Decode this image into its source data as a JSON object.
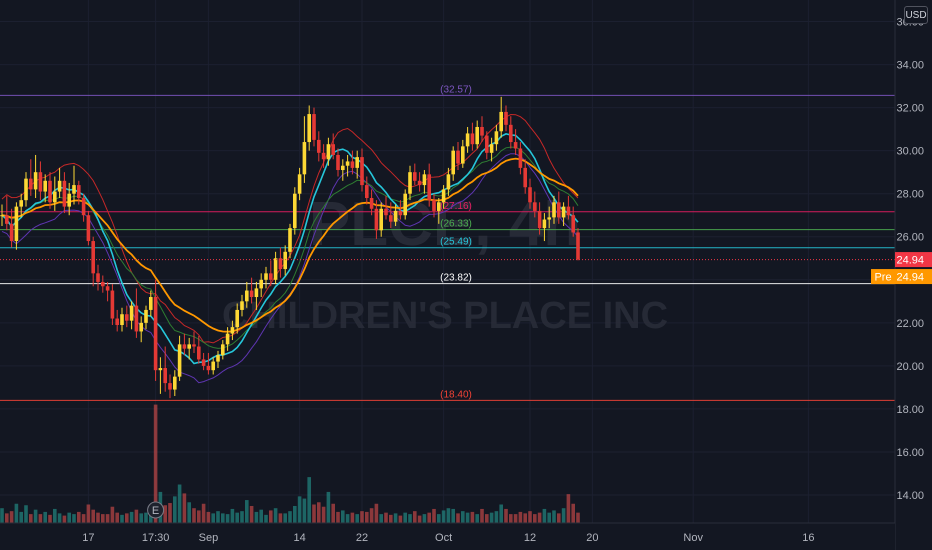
{
  "currency": "USD",
  "watermark": {
    "symbol": "PLCE, 4h",
    "company": "CHILDREN'S PLACE INC"
  },
  "y_axis": {
    "ticks": [
      {
        "v": 14,
        "label": "14.00"
      },
      {
        "v": 16,
        "label": "16.00"
      },
      {
        "v": 18,
        "label": "18.00"
      },
      {
        "v": 20,
        "label": "20.00"
      },
      {
        "v": 22,
        "label": "22.00"
      },
      {
        "v": 24,
        "label": "24.00"
      },
      {
        "v": 26,
        "label": "26.00"
      },
      {
        "v": 28,
        "label": "28.00"
      },
      {
        "v": 30,
        "label": "30.00"
      },
      {
        "v": 32,
        "label": "32.00"
      },
      {
        "v": 34,
        "label": "34.00"
      },
      {
        "v": 36,
        "label": "36.00"
      }
    ]
  },
  "x_axis": {
    "ticks": [
      {
        "i": 18,
        "label": "17"
      },
      {
        "i": 32,
        "label": "17:30"
      },
      {
        "i": 43,
        "label": "Sep"
      },
      {
        "i": 62,
        "label": "14"
      },
      {
        "i": 75,
        "label": "22"
      },
      {
        "i": 92,
        "label": "Oct"
      },
      {
        "i": 110,
        "label": "12"
      },
      {
        "i": 123,
        "label": "20"
      },
      {
        "i": 144,
        "label": "Nov"
      },
      {
        "i": 168,
        "label": "16"
      }
    ]
  },
  "last_price": {
    "value": 24.94,
    "label": "24.94",
    "color": "#f23645"
  },
  "premarket": {
    "tag": "Pre",
    "value": 24.94,
    "label": "24.94",
    "color": "#ff9800"
  },
  "earnings_marker": {
    "i": 32,
    "label": "E"
  },
  "chart_data": {
    "type": "candlestick",
    "interval": "4h",
    "y_range": [
      12.7,
      37.0
    ],
    "colors": {
      "up": "#fdd835",
      "down": "#e53935",
      "vol_up": "#26a69a",
      "vol_down": "#ef5350"
    },
    "levels": [
      {
        "value": 32.57,
        "label": "32.57",
        "color": "#7e57c2"
      },
      {
        "value": 27.16,
        "label": "27.16",
        "color": "#e91e63"
      },
      {
        "value": 26.33,
        "label": "26.33",
        "color": "#4caf50"
      },
      {
        "value": 25.49,
        "label": "25.49",
        "color": "#26c6da"
      },
      {
        "value": 23.82,
        "label": "23.82",
        "color": "#ffffff"
      },
      {
        "value": 18.4,
        "label": "18.40",
        "color": "#f44336"
      }
    ],
    "candles": [
      [
        27.0,
        27.5,
        26.5,
        27.0
      ],
      [
        27.0,
        27.9,
        26.3,
        26.6
      ],
      [
        26.6,
        27.3,
        25.5,
        25.8
      ],
      [
        25.8,
        27.6,
        25.4,
        27.4
      ],
      [
        27.4,
        28.0,
        26.9,
        27.7
      ],
      [
        27.7,
        29.0,
        27.4,
        28.7
      ],
      [
        28.7,
        29.6,
        27.9,
        28.2
      ],
      [
        28.2,
        29.8,
        27.8,
        29.0
      ],
      [
        29.0,
        29.5,
        27.7,
        28.1
      ],
      [
        28.1,
        28.9,
        27.6,
        28.6
      ],
      [
        28.6,
        29.0,
        27.3,
        27.6
      ],
      [
        27.6,
        28.8,
        27.2,
        28.1
      ],
      [
        28.1,
        29.2,
        27.8,
        28.6
      ],
      [
        28.6,
        29.0,
        27.1,
        27.4
      ],
      [
        27.4,
        28.5,
        27.0,
        28.0
      ],
      [
        28.0,
        29.3,
        27.5,
        28.4
      ],
      [
        28.4,
        28.6,
        27.5,
        27.8
      ],
      [
        27.8,
        28.0,
        26.7,
        27.0
      ],
      [
        27.0,
        27.2,
        25.6,
        25.8
      ],
      [
        25.8,
        26.0,
        23.7,
        24.3
      ],
      [
        24.3,
        24.7,
        23.5,
        23.9
      ],
      [
        23.9,
        24.2,
        23.4,
        23.7
      ],
      [
        23.7,
        23.9,
        23.0,
        23.5
      ],
      [
        23.5,
        23.8,
        21.9,
        22.2
      ],
      [
        22.2,
        22.6,
        21.6,
        21.9
      ],
      [
        21.9,
        22.7,
        21.6,
        22.4
      ],
      [
        22.4,
        22.8,
        21.8,
        22.1
      ],
      [
        22.1,
        23.0,
        21.7,
        22.8
      ],
      [
        22.8,
        23.6,
        21.3,
        21.6
      ],
      [
        21.6,
        22.3,
        21.1,
        22.0
      ],
      [
        22.0,
        22.8,
        21.7,
        22.6
      ],
      [
        22.6,
        23.5,
        22.3,
        23.2
      ],
      [
        23.2,
        24.0,
        19.3,
        19.8
      ],
      [
        19.8,
        20.4,
        18.7,
        19.9
      ],
      [
        19.9,
        20.9,
        18.8,
        19.2
      ],
      [
        19.2,
        19.6,
        18.5,
        18.9
      ],
      [
        18.9,
        19.8,
        18.6,
        19.5
      ],
      [
        19.5,
        21.4,
        19.3,
        21.0
      ],
      [
        21.0,
        21.5,
        20.5,
        20.8
      ],
      [
        20.8,
        21.3,
        20.3,
        21.0
      ],
      [
        21.0,
        21.6,
        20.6,
        20.9
      ],
      [
        20.9,
        21.4,
        20.1,
        20.3
      ],
      [
        20.3,
        20.6,
        19.8,
        20.0
      ],
      [
        20.0,
        20.6,
        19.6,
        19.8
      ],
      [
        19.8,
        20.4,
        19.6,
        20.2
      ],
      [
        20.2,
        20.7,
        19.9,
        20.5
      ],
      [
        20.5,
        21.2,
        20.3,
        21.0
      ],
      [
        21.0,
        21.8,
        20.7,
        21.5
      ],
      [
        21.5,
        22.1,
        21.2,
        21.8
      ],
      [
        21.8,
        22.9,
        21.5,
        22.6
      ],
      [
        22.6,
        23.3,
        22.3,
        23.0
      ],
      [
        23.0,
        23.9,
        22.7,
        23.5
      ],
      [
        23.5,
        24.1,
        22.9,
        23.2
      ],
      [
        23.2,
        23.9,
        22.6,
        23.6
      ],
      [
        23.6,
        24.3,
        23.2,
        24.0
      ],
      [
        24.0,
        24.6,
        23.6,
        24.3
      ],
      [
        24.3,
        24.9,
        23.7,
        24.0
      ],
      [
        24.0,
        25.3,
        23.8,
        25.0
      ],
      [
        25.0,
        25.5,
        24.1,
        24.5
      ],
      [
        24.5,
        25.6,
        24.2,
        25.3
      ],
      [
        25.3,
        26.6,
        25.0,
        26.4
      ],
      [
        26.4,
        28.3,
        26.1,
        28.0
      ],
      [
        28.0,
        29.2,
        27.7,
        28.9
      ],
      [
        28.9,
        31.6,
        28.5,
        30.4
      ],
      [
        30.4,
        32.1,
        30.0,
        31.7
      ],
      [
        31.7,
        32.0,
        30.2,
        30.5
      ],
      [
        30.5,
        30.9,
        29.5,
        29.9
      ],
      [
        29.9,
        30.3,
        29.2,
        29.6
      ],
      [
        29.6,
        30.6,
        29.3,
        30.3
      ],
      [
        30.3,
        30.8,
        29.6,
        29.8
      ],
      [
        29.8,
        30.1,
        28.8,
        29.1
      ],
      [
        29.1,
        29.6,
        28.6,
        29.3
      ],
      [
        29.3,
        29.8,
        28.8,
        29.5
      ],
      [
        29.5,
        30.0,
        28.9,
        29.2
      ],
      [
        29.2,
        30.0,
        28.7,
        29.7
      ],
      [
        29.7,
        30.1,
        28.1,
        28.4
      ],
      [
        28.4,
        28.8,
        27.5,
        27.8
      ],
      [
        27.8,
        28.2,
        27.0,
        27.3
      ],
      [
        27.3,
        27.7,
        25.9,
        26.3
      ],
      [
        26.3,
        27.6,
        26.0,
        27.3
      ],
      [
        27.3,
        27.9,
        26.8,
        27.0
      ],
      [
        27.0,
        27.6,
        26.4,
        26.7
      ],
      [
        26.7,
        27.5,
        26.5,
        27.2
      ],
      [
        27.2,
        27.7,
        26.8,
        27.0
      ],
      [
        27.0,
        28.2,
        26.8,
        28.0
      ],
      [
        28.0,
        29.3,
        27.7,
        29.0
      ],
      [
        29.0,
        29.4,
        28.4,
        28.6
      ],
      [
        28.6,
        29.0,
        28.1,
        28.4
      ],
      [
        28.4,
        29.1,
        28.0,
        28.9
      ],
      [
        28.9,
        29.4,
        27.4,
        27.7
      ],
      [
        27.7,
        28.0,
        26.9,
        27.2
      ],
      [
        27.2,
        27.8,
        26.6,
        27.6
      ],
      [
        27.6,
        28.4,
        27.3,
        28.2
      ],
      [
        28.2,
        29.2,
        27.9,
        28.9
      ],
      [
        28.9,
        30.2,
        28.6,
        30.0
      ],
      [
        30.0,
        30.4,
        29.1,
        29.4
      ],
      [
        29.4,
        30.5,
        29.2,
        30.2
      ],
      [
        30.2,
        31.1,
        29.9,
        30.8
      ],
      [
        30.8,
        31.3,
        30.0,
        30.3
      ],
      [
        30.3,
        31.4,
        30.1,
        31.1
      ],
      [
        31.1,
        31.6,
        30.4,
        30.7
      ],
      [
        30.7,
        30.9,
        29.6,
        29.9
      ],
      [
        29.9,
        30.6,
        29.5,
        30.3
      ],
      [
        30.3,
        31.2,
        30.0,
        30.9
      ],
      [
        30.9,
        32.5,
        30.6,
        31.8
      ],
      [
        31.8,
        32.1,
        30.9,
        31.2
      ],
      [
        31.2,
        31.6,
        30.1,
        30.4
      ],
      [
        30.4,
        31.0,
        29.8,
        30.1
      ],
      [
        30.1,
        30.4,
        28.9,
        29.2
      ],
      [
        29.2,
        29.6,
        28.0,
        28.3
      ],
      [
        28.3,
        28.7,
        27.3,
        27.6
      ],
      [
        27.6,
        28.1,
        26.9,
        27.2
      ],
      [
        27.2,
        27.6,
        26.1,
        26.4
      ],
      [
        26.4,
        27.1,
        25.8,
        26.8
      ],
      [
        26.8,
        27.4,
        26.4,
        26.9
      ],
      [
        26.9,
        27.9,
        26.6,
        27.6
      ],
      [
        27.6,
        28.1,
        26.6,
        26.9
      ],
      [
        26.9,
        27.6,
        26.5,
        27.4
      ],
      [
        27.4,
        27.9,
        26.8,
        27.0
      ],
      [
        27.0,
        27.4,
        26.0,
        26.2
      ],
      [
        26.2,
        26.4,
        24.9,
        24.94
      ]
    ],
    "volume": [
      2.0,
      1.3,
      1.6,
      2.6,
      1.5,
      2.4,
      1.2,
      1.8,
      1.2,
      1.5,
      1.1,
      1.9,
      1.3,
      1.0,
      1.4,
      1.2,
      1.5,
      1.2,
      2.5,
      1.8,
      1.4,
      1.2,
      1.2,
      2.2,
      1.4,
      1.1,
      1.3,
      1.5,
      1.8,
      1.3,
      1.4,
      2.3,
      16.0,
      4.2,
      2.4,
      2.7,
      3.6,
      5.2,
      4.0,
      2.8,
      2.0,
      1.7,
      2.6,
      1.5,
      1.3,
      1.6,
      1.3,
      1.2,
      1.9,
      1.4,
      1.6,
      3.1,
      2.3,
      1.5,
      1.8,
      1.1,
      1.7,
      2.0,
      1.3,
      1.3,
      1.6,
      2.3,
      3.6,
      3.3,
      6.2,
      2.5,
      2.8,
      2.2,
      4.2,
      2.6,
      1.5,
      1.7,
      1.2,
      1.4,
      1.2,
      1.6,
      1.5,
      2.0,
      2.6,
      1.2,
      1.4,
      1.1,
      1.3,
      1.0,
      1.4,
      1.2,
      1.6,
      1.0,
      1.2,
      1.4,
      1.9,
      1.2,
      1.7,
      2.0,
      1.9,
      1.3,
      1.6,
      1.4,
      1.5,
      1.2,
      1.9,
      1.2,
      1.4,
      1.6,
      2.5,
      1.9,
      1.2,
      1.2,
      1.5,
      1.3,
      1.6,
      1.2,
      1.4,
      1.9,
      1.4,
      1.7,
      1.3,
      2.0,
      3.9,
      2.6,
      1.4
    ]
  }
}
